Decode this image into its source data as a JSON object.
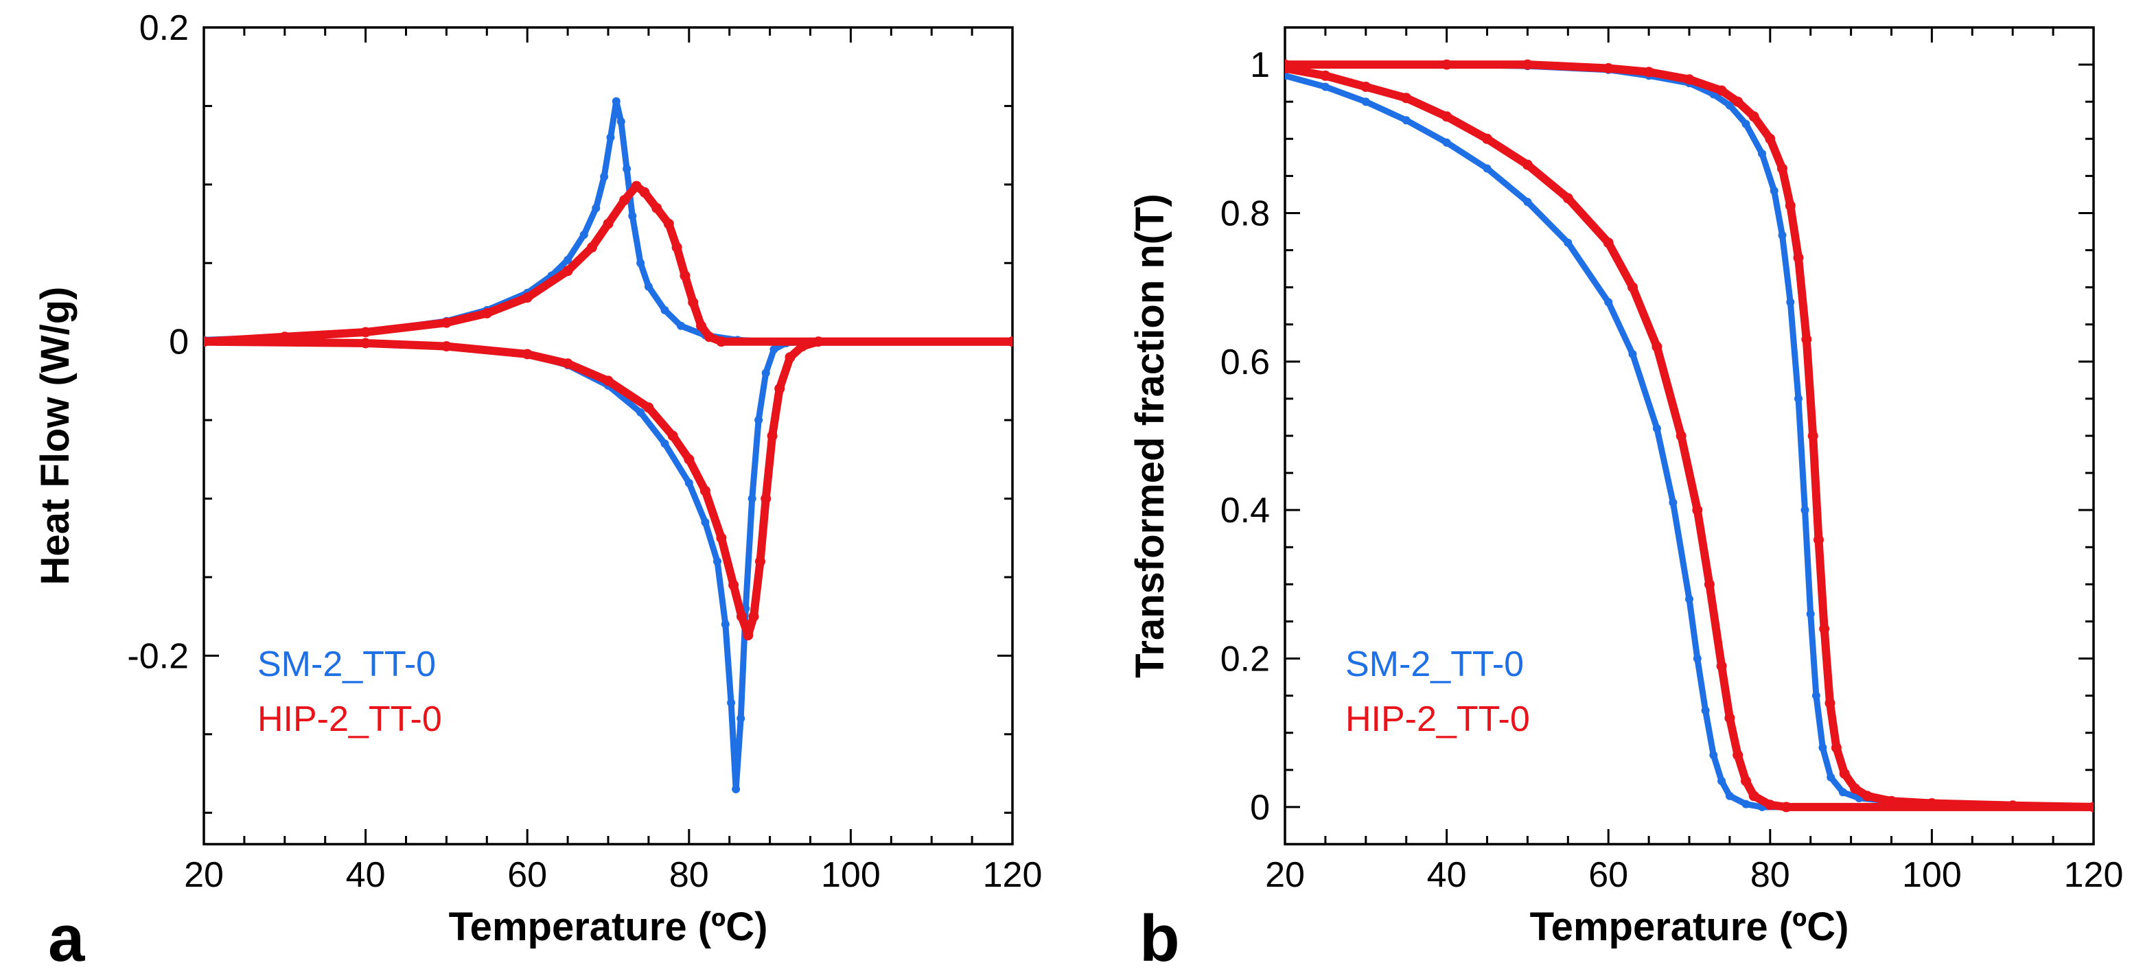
{
  "chart_data": [
    {
      "type": "scatter",
      "panel_label": "a",
      "xlabel": "Temperature (ºC)",
      "ylabel": "Heat Flow (W/g)",
      "xlim": [
        20,
        120
      ],
      "ylim": [
        -0.32,
        0.2
      ],
      "xticks": [
        20,
        40,
        60,
        80,
        100,
        120
      ],
      "xtick_labels": [
        "20",
        "40",
        "60",
        "80",
        "100",
        "120"
      ],
      "yticks": [
        0.2,
        0,
        -0.2
      ],
      "ytick_labels": [
        "0.2",
        "0",
        "-0.2"
      ],
      "legend_position": "bottom-left",
      "series": [
        {
          "name": "SM-2_TT-0",
          "color": "#1f6fe5",
          "branches": [
            [
              [
                20,
                0.001
              ],
              [
                30,
                0.003
              ],
              [
                40,
                0.006
              ],
              [
                50,
                0.013
              ],
              [
                55,
                0.02
              ],
              [
                60,
                0.031
              ],
              [
                63,
                0.042
              ],
              [
                65,
                0.052
              ],
              [
                67,
                0.068
              ],
              [
                68.5,
                0.085
              ],
              [
                69.5,
                0.105
              ],
              [
                70.3,
                0.13
              ],
              [
                71,
                0.153
              ],
              [
                71.6,
                0.14
              ],
              [
                72.3,
                0.11
              ],
              [
                73,
                0.08
              ],
              [
                74,
                0.05
              ],
              [
                75,
                0.035
              ],
              [
                77,
                0.02
              ],
              [
                79,
                0.01
              ],
              [
                82,
                0.004
              ],
              [
                86,
                0.001
              ],
              [
                90,
                0.0
              ],
              [
                120,
                0.0
              ]
            ],
            [
              [
                20,
                0.0
              ],
              [
                40,
                -0.001
              ],
              [
                50,
                -0.003
              ],
              [
                60,
                -0.008
              ],
              [
                65,
                -0.015
              ],
              [
                70,
                -0.028
              ],
              [
                74,
                -0.045
              ],
              [
                77,
                -0.065
              ],
              [
                80,
                -0.09
              ],
              [
                82,
                -0.115
              ],
              [
                83.5,
                -0.14
              ],
              [
                84.5,
                -0.18
              ],
              [
                85.2,
                -0.23
              ],
              [
                85.8,
                -0.285
              ],
              [
                86.4,
                -0.24
              ],
              [
                87,
                -0.17
              ],
              [
                87.8,
                -0.1
              ],
              [
                88.6,
                -0.05
              ],
              [
                89.5,
                -0.02
              ],
              [
                90.5,
                -0.005
              ],
              [
                92,
                -0.001
              ],
              [
                95,
                0.0
              ],
              [
                120,
                0.0
              ]
            ]
          ]
        },
        {
          "name": "HIP-2_TT-0",
          "color": "#e8141c",
          "branches": [
            [
              [
                20,
                0.0
              ],
              [
                30,
                0.003
              ],
              [
                40,
                0.006
              ],
              [
                50,
                0.012
              ],
              [
                55,
                0.018
              ],
              [
                60,
                0.028
              ],
              [
                65,
                0.045
              ],
              [
                68,
                0.06
              ],
              [
                70,
                0.075
              ],
              [
                72,
                0.09
              ],
              [
                73.5,
                0.099
              ],
              [
                74.5,
                0.095
              ],
              [
                76,
                0.085
              ],
              [
                77.5,
                0.075
              ],
              [
                78.5,
                0.06
              ],
              [
                79.5,
                0.042
              ],
              [
                80.5,
                0.025
              ],
              [
                81.5,
                0.01
              ],
              [
                82.5,
                0.003
              ],
              [
                84,
                0.0
              ],
              [
                120,
                0.0
              ]
            ],
            [
              [
                20,
                0.0
              ],
              [
                40,
                -0.001
              ],
              [
                50,
                -0.003
              ],
              [
                60,
                -0.008
              ],
              [
                65,
                -0.014
              ],
              [
                70,
                -0.025
              ],
              [
                75,
                -0.042
              ],
              [
                78,
                -0.06
              ],
              [
                80,
                -0.075
              ],
              [
                82,
                -0.095
              ],
              [
                84,
                -0.125
              ],
              [
                85.5,
                -0.155
              ],
              [
                86.5,
                -0.175
              ],
              [
                87.3,
                -0.187
              ],
              [
                88,
                -0.175
              ],
              [
                88.8,
                -0.14
              ],
              [
                89.5,
                -0.1
              ],
              [
                90.3,
                -0.06
              ],
              [
                91.2,
                -0.03
              ],
              [
                92.5,
                -0.01
              ],
              [
                94,
                -0.003
              ],
              [
                96,
                0.0
              ],
              [
                120,
                0.0
              ]
            ]
          ]
        }
      ]
    },
    {
      "type": "scatter",
      "panel_label": "b",
      "xlabel": "Temperature (ºC)",
      "ylabel": "Transformed fraction n(T)",
      "xlim": [
        20,
        120
      ],
      "ylim": [
        -0.05,
        1.05
      ],
      "xticks": [
        20,
        40,
        60,
        80,
        100,
        120
      ],
      "xtick_labels": [
        "20",
        "40",
        "60",
        "80",
        "100",
        "120"
      ],
      "yticks": [
        0,
        0.2,
        0.4,
        0.6,
        0.8,
        1
      ],
      "ytick_labels": [
        "0",
        "0.2",
        "0.4",
        "0.6",
        "0.8",
        "1"
      ],
      "legend_position": "bottom-left",
      "series": [
        {
          "name": "SM-2_TT-0",
          "color": "#1f6fe5",
          "branches": [
            [
              [
                20,
                0.985
              ],
              [
                25,
                0.97
              ],
              [
                30,
                0.95
              ],
              [
                35,
                0.925
              ],
              [
                40,
                0.895
              ],
              [
                45,
                0.86
              ],
              [
                50,
                0.815
              ],
              [
                55,
                0.76
              ],
              [
                60,
                0.68
              ],
              [
                63,
                0.61
              ],
              [
                66,
                0.51
              ],
              [
                68,
                0.41
              ],
              [
                70,
                0.28
              ],
              [
                71,
                0.2
              ],
              [
                72,
                0.13
              ],
              [
                73,
                0.07
              ],
              [
                74,
                0.035
              ],
              [
                75,
                0.015
              ],
              [
                77,
                0.004
              ],
              [
                79,
                0.0
              ],
              [
                120,
                0.0
              ]
            ],
            [
              [
                20,
                1.0
              ],
              [
                40,
                1.0
              ],
              [
                50,
                0.998
              ],
              [
                60,
                0.993
              ],
              [
                65,
                0.985
              ],
              [
                70,
                0.975
              ],
              [
                73,
                0.96
              ],
              [
                75,
                0.945
              ],
              [
                77,
                0.92
              ],
              [
                79,
                0.88
              ],
              [
                80.5,
                0.83
              ],
              [
                81.5,
                0.77
              ],
              [
                82.5,
                0.68
              ],
              [
                83.5,
                0.55
              ],
              [
                84.3,
                0.4
              ],
              [
                85,
                0.26
              ],
              [
                85.7,
                0.15
              ],
              [
                86.5,
                0.08
              ],
              [
                87.5,
                0.04
              ],
              [
                89,
                0.02
              ],
              [
                91,
                0.012
              ],
              [
                95,
                0.008
              ],
              [
                100,
                0.005
              ],
              [
                110,
                0.002
              ],
              [
                120,
                0.0
              ]
            ]
          ]
        },
        {
          "name": "HIP-2_TT-0",
          "color": "#e8141c",
          "branches": [
            [
              [
                20,
                0.995
              ],
              [
                25,
                0.985
              ],
              [
                30,
                0.97
              ],
              [
                35,
                0.955
              ],
              [
                40,
                0.93
              ],
              [
                45,
                0.9
              ],
              [
                50,
                0.865
              ],
              [
                55,
                0.82
              ],
              [
                60,
                0.76
              ],
              [
                63,
                0.7
              ],
              [
                66,
                0.62
              ],
              [
                69,
                0.5
              ],
              [
                71,
                0.4
              ],
              [
                72.5,
                0.3
              ],
              [
                74,
                0.19
              ],
              [
                75,
                0.12
              ],
              [
                76,
                0.07
              ],
              [
                77,
                0.035
              ],
              [
                78,
                0.015
              ],
              [
                80,
                0.003
              ],
              [
                82,
                0.0
              ],
              [
                120,
                0.0
              ]
            ],
            [
              [
                20,
                1.0
              ],
              [
                40,
                1.0
              ],
              [
                50,
                1.0
              ],
              [
                60,
                0.995
              ],
              [
                65,
                0.99
              ],
              [
                70,
                0.98
              ],
              [
                74,
                0.965
              ],
              [
                76,
                0.95
              ],
              [
                78,
                0.93
              ],
              [
                80,
                0.9
              ],
              [
                81.5,
                0.86
              ],
              [
                82.5,
                0.81
              ],
              [
                83.5,
                0.74
              ],
              [
                84.5,
                0.63
              ],
              [
                85.3,
                0.5
              ],
              [
                86,
                0.36
              ],
              [
                86.7,
                0.24
              ],
              [
                87.4,
                0.14
              ],
              [
                88.2,
                0.08
              ],
              [
                89.2,
                0.045
              ],
              [
                90.5,
                0.025
              ],
              [
                92,
                0.015
              ],
              [
                95,
                0.008
              ],
              [
                100,
                0.005
              ],
              [
                110,
                0.002
              ],
              [
                120,
                0.0
              ]
            ]
          ]
        }
      ]
    }
  ]
}
